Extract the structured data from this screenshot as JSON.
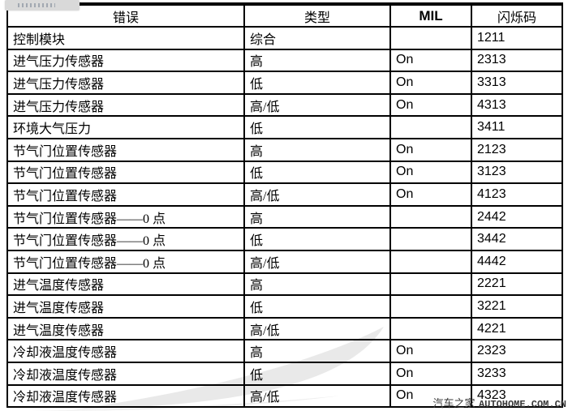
{
  "page": {
    "background_color": "#ffffff"
  },
  "colors": {
    "table_border": "#000000",
    "text": "#000000",
    "swoosh_gray": "#e2e2e2",
    "credit_text": "#3a3a3a",
    "artifact_bg": "#d9d9d9"
  },
  "table": {
    "columns": [
      {
        "id": "error",
        "label": "错误"
      },
      {
        "id": "type",
        "label": "类型"
      },
      {
        "id": "mil",
        "label": "MIL"
      },
      {
        "id": "code",
        "label": "闪烁码"
      }
    ],
    "rows": [
      {
        "error": "控制模块",
        "type": "综合",
        "mil": "",
        "code": "1211"
      },
      {
        "error": "进气压力传感器",
        "type": "高",
        "mil": "On",
        "code": "2313"
      },
      {
        "error": "进气压力传感器",
        "type": "低",
        "mil": "On",
        "code": "3313"
      },
      {
        "error": "进气压力传感器",
        "type": "高/低",
        "mil": "On",
        "code": "4313"
      },
      {
        "error": "环境大气压力",
        "type": "低",
        "mil": "",
        "code": "3411"
      },
      {
        "error": "节气门位置传感器",
        "type": "高",
        "mil": "On",
        "code": "2123"
      },
      {
        "error": "节气门位置传感器",
        "type": "低",
        "mil": "On",
        "code": "3123"
      },
      {
        "error": "节气门位置传感器",
        "type": "高/低",
        "mil": "On",
        "code": "4123"
      },
      {
        "error": "节气门位置传感器——0 点",
        "type": "高",
        "mil": "",
        "code": "2442"
      },
      {
        "error": "节气门位置传感器——0 点",
        "type": "低",
        "mil": "",
        "code": "3442"
      },
      {
        "error": "节气门位置传感器——0 点",
        "type": "高/低",
        "mil": "",
        "code": "4442"
      },
      {
        "error": "进气温度传感器",
        "type": "高",
        "mil": "",
        "code": "2221"
      },
      {
        "error": "进气温度传感器",
        "type": "低",
        "mil": "",
        "code": "3221"
      },
      {
        "error": "进气温度传感器",
        "type": "高/低",
        "mil": "",
        "code": "4221"
      },
      {
        "error": "冷却液温度传感器",
        "type": "高",
        "mil": "On",
        "code": "2323"
      },
      {
        "error": "冷却液温度传感器",
        "type": "低",
        "mil": "On",
        "code": "3233"
      },
      {
        "error": "冷却液温度传感器",
        "type": "高/低",
        "mil": "On",
        "code": "4323"
      }
    ]
  },
  "watermark": {
    "site_name_cn": "汽车之家",
    "site_url": "AUTOHOME.COM.CN"
  }
}
